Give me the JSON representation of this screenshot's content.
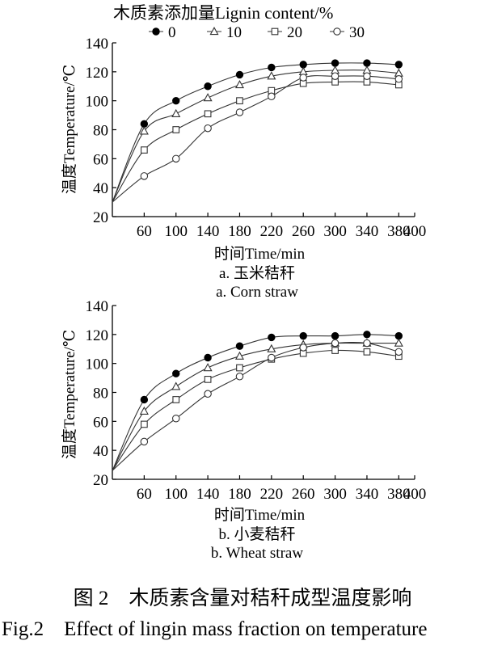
{
  "figure": {
    "legend_title": "木质素添加量Lignin content/%",
    "caption_cn": "图 2　木质素含量对秸秆成型温度影响",
    "caption_en": "Fig.2　Effect of lingin mass fraction on temperature"
  },
  "chart_data": [
    {
      "type": "line",
      "title": "",
      "subtitle_cn": "a. 玉米秸秆",
      "subtitle_en": "a. Corn straw",
      "xlabel": "时间Time/min",
      "ylabel": "温度Temperature/℃",
      "xlim": [
        20,
        400
      ],
      "ylim": [
        20,
        140
      ],
      "x_ticks": [
        60,
        100,
        140,
        180,
        220,
        260,
        300,
        340,
        380,
        400
      ],
      "y_ticks": [
        20,
        40,
        60,
        80,
        100,
        120,
        140
      ],
      "grid": false,
      "legend_position": "top",
      "x": [
        60,
        100,
        140,
        180,
        220,
        260,
        300,
        340,
        380
      ],
      "curve_start": [
        20,
        30
      ],
      "series": [
        {
          "name": "0",
          "marker": "filled-circle",
          "values": [
            84,
            100,
            110,
            118,
            123,
            125,
            126,
            126,
            125
          ]
        },
        {
          "name": "10",
          "marker": "triangle",
          "values": [
            79,
            91,
            102,
            111,
            117,
            120,
            121,
            121,
            119
          ]
        },
        {
          "name": "20",
          "marker": "square",
          "values": [
            66,
            80,
            91,
            100,
            107,
            112,
            113,
            113,
            111
          ]
        },
        {
          "name": "30",
          "marker": "circle",
          "values": [
            48,
            60,
            81,
            92,
            103,
            116,
            117,
            117,
            115
          ]
        }
      ]
    },
    {
      "type": "line",
      "title": "",
      "subtitle_cn": "b. 小麦秸秆",
      "subtitle_en": "b. Wheat straw",
      "xlabel": "时间Time/min",
      "ylabel": "温度Temperature/℃",
      "xlim": [
        20,
        400
      ],
      "ylim": [
        20,
        140
      ],
      "x_ticks": [
        60,
        100,
        140,
        180,
        220,
        260,
        300,
        340,
        380,
        400
      ],
      "y_ticks": [
        20,
        40,
        60,
        80,
        100,
        120,
        140
      ],
      "grid": false,
      "legend_position": "none",
      "x": [
        60,
        100,
        140,
        180,
        220,
        260,
        300,
        340,
        380
      ],
      "curve_start": [
        20,
        26
      ],
      "series": [
        {
          "name": "0",
          "marker": "filled-circle",
          "values": [
            75,
            93,
            104,
            112,
            118,
            119,
            119,
            120,
            119
          ]
        },
        {
          "name": "10",
          "marker": "triangle",
          "values": [
            67,
            84,
            97,
            105,
            110,
            113,
            114,
            114,
            114
          ]
        },
        {
          "name": "20",
          "marker": "square",
          "values": [
            58,
            75,
            89,
            97,
            103,
            107,
            109,
            108,
            105
          ]
        },
        {
          "name": "30",
          "marker": "circle",
          "values": [
            46,
            62,
            79,
            91,
            104,
            111,
            114,
            114,
            108
          ]
        }
      ]
    }
  ]
}
